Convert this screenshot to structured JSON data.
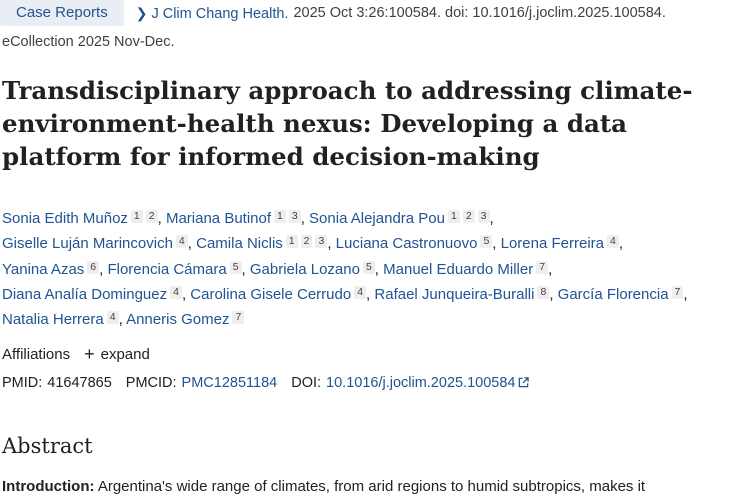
{
  "article_type": "Case Reports",
  "journal": "J Clim Chang Health.",
  "citation": "2025 Oct 3:26:100584. doi: 10.1016/j.joclim.2025.100584.",
  "ecollection": "eCollection 2025 Nov-Dec.",
  "title_lines": [
    "Transdisciplinary approach to addressing climate-",
    "environment-health nexus: Developing a data",
    "platform for informed decision-making"
  ],
  "authors": [
    {
      "name": "Sonia Edith Muñoz",
      "affs": [
        "1",
        "2"
      ]
    },
    {
      "name": "Mariana Butinof",
      "affs": [
        "1",
        "3"
      ]
    },
    {
      "name": "Sonia Alejandra Pou",
      "affs": [
        "1",
        "2",
        "3"
      ]
    },
    {
      "name": "Giselle Luján Marincovich",
      "affs": [
        "4"
      ]
    },
    {
      "name": "Camila Niclis",
      "affs": [
        "1",
        "2",
        "3"
      ]
    },
    {
      "name": "Luciana Castronuovo",
      "affs": [
        "5"
      ]
    },
    {
      "name": "Lorena Ferreira",
      "affs": [
        "4"
      ]
    },
    {
      "name": "Yanina Azas",
      "affs": [
        "6"
      ]
    },
    {
      "name": "Florencia Cámara",
      "affs": [
        "5"
      ]
    },
    {
      "name": "Gabriela Lozano",
      "affs": [
        "5"
      ]
    },
    {
      "name": "Manuel Eduardo Miller",
      "affs": [
        "7"
      ]
    },
    {
      "name": "Diana Analía Dominguez",
      "affs": [
        "4"
      ]
    },
    {
      "name": "Carolina Gisele Cerrudo",
      "affs": [
        "4"
      ]
    },
    {
      "name": "Rafael Junqueira-Buralli",
      "affs": [
        "8"
      ]
    },
    {
      "name": "García Florencia",
      "affs": [
        "7"
      ]
    },
    {
      "name": "Natalia Herrera",
      "affs": [
        "4"
      ]
    },
    {
      "name": "Anneris Gomez",
      "affs": [
        "7"
      ]
    }
  ],
  "affiliations_label": "Affiliations",
  "expand_label": "expand",
  "pmid_label": "PMID:",
  "pmid": "41647865",
  "pmcid_label": "PMCID:",
  "pmcid": "PMC12851184",
  "doi_label": "DOI:",
  "doi": "10.1016/j.joclim.2025.100584",
  "abstract_heading": "Abstract",
  "intro_label": "Introduction:",
  "intro_text": "Argentina's wide range of climates, from arid regions to humid subtropics, makes it",
  "colors": {
    "link": "#205493",
    "badge_bg": "#e9eef5"
  }
}
